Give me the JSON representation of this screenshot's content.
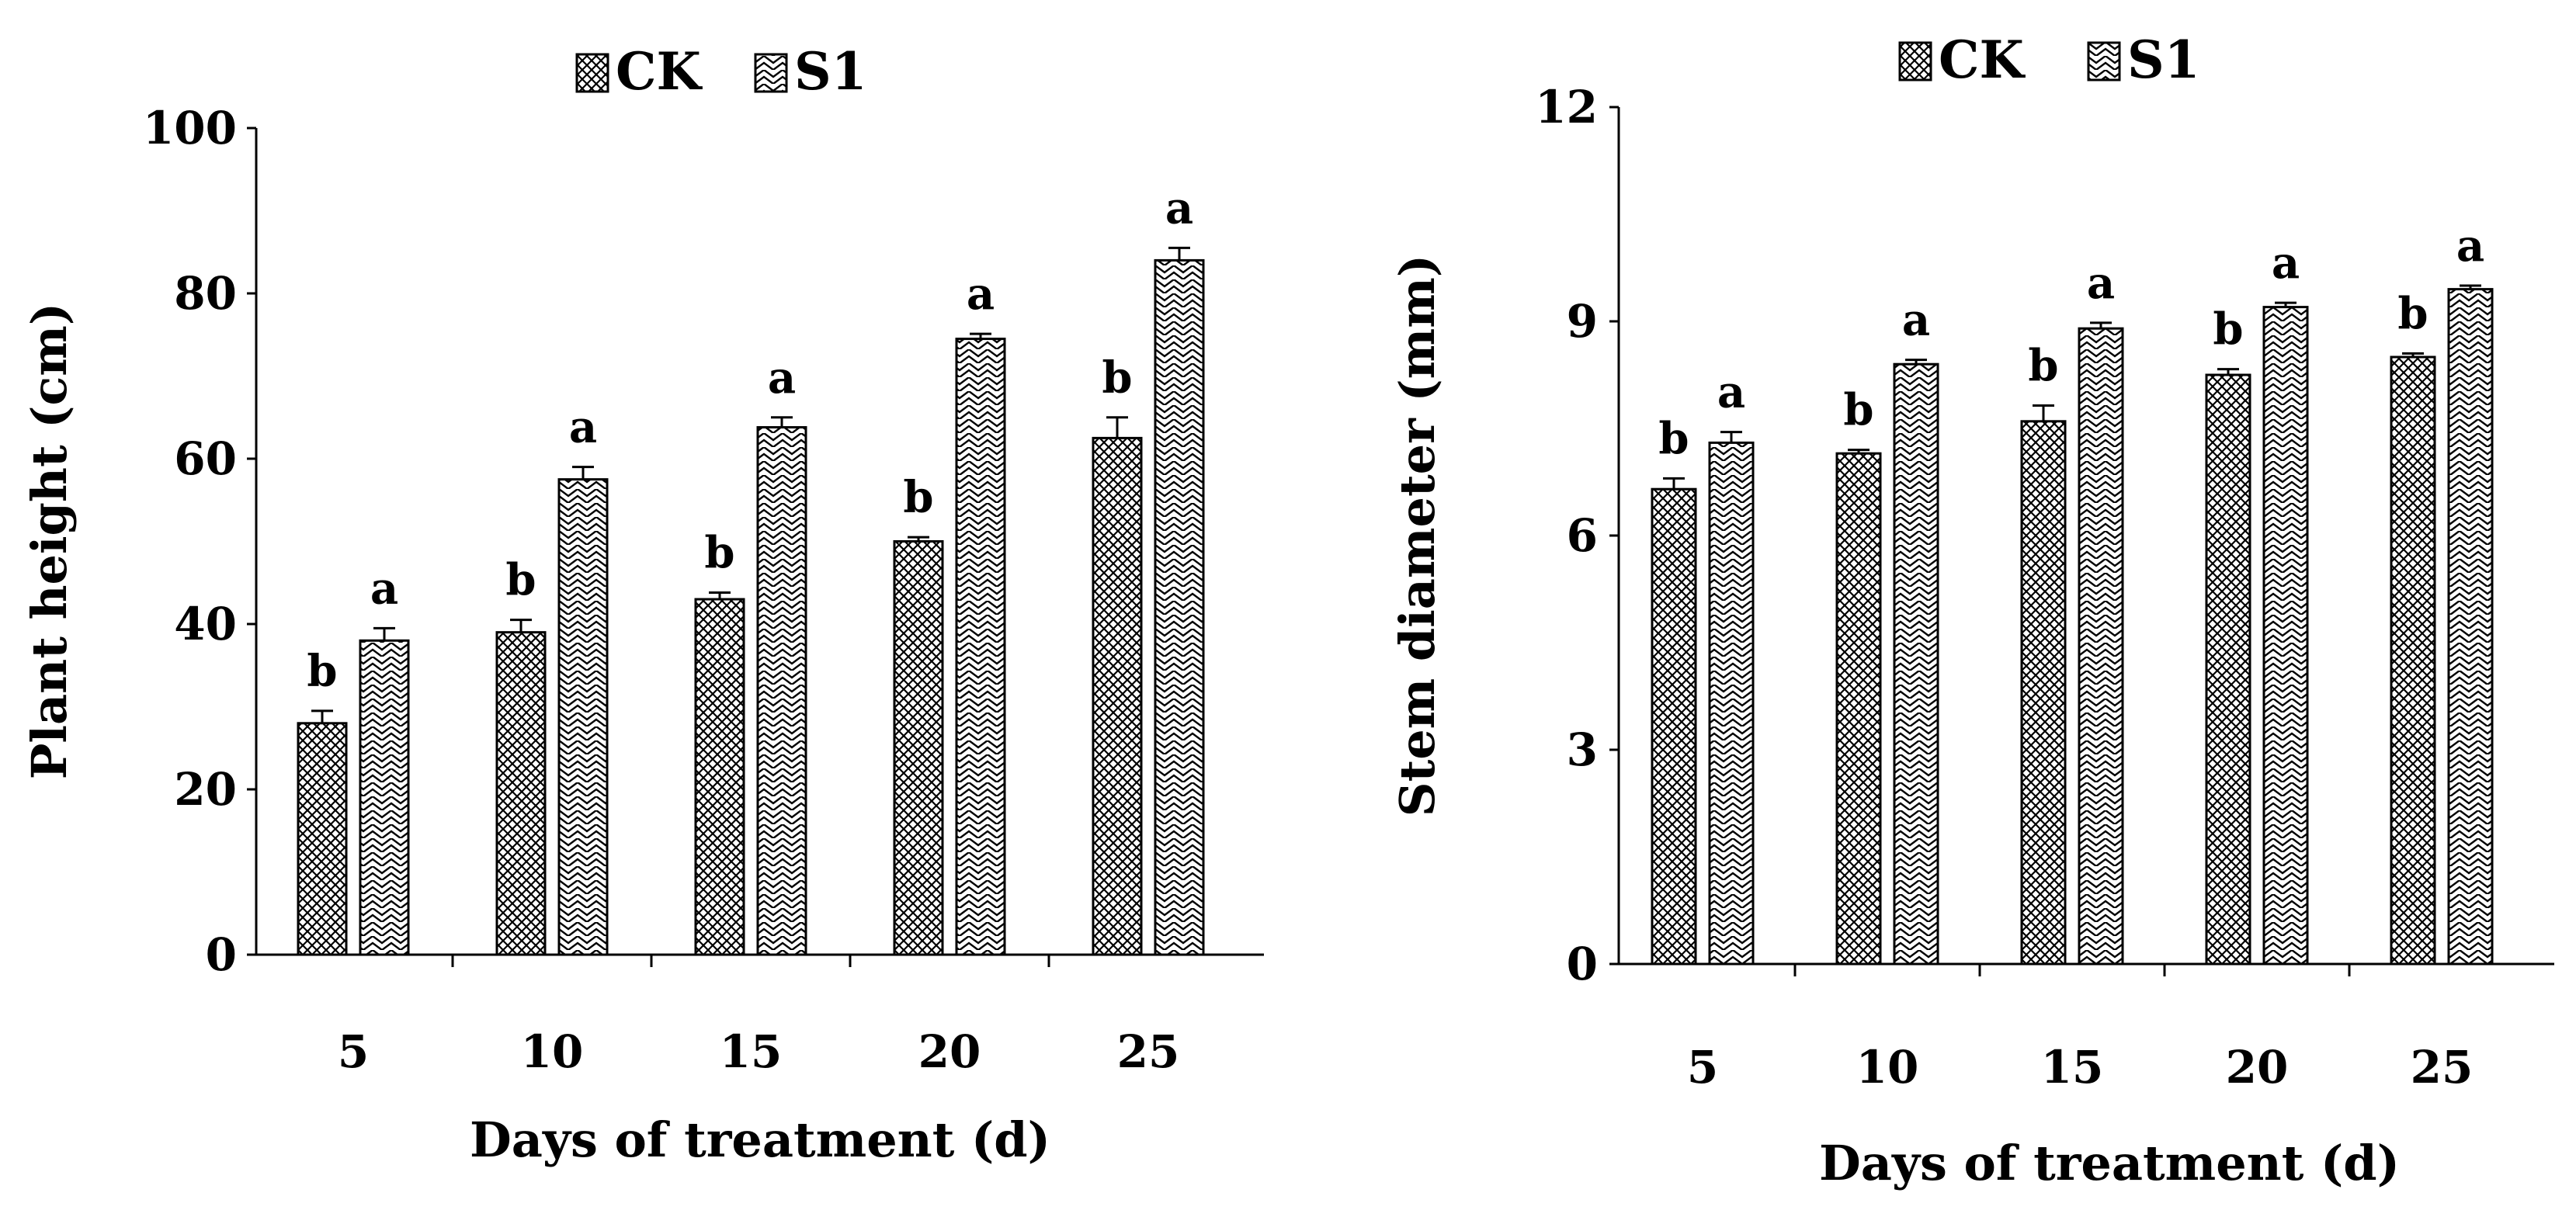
{
  "chart_data": [
    {
      "type": "bar",
      "name": "plant-height",
      "categories": [
        "5",
        "10",
        "15",
        "20",
        "25"
      ],
      "series": [
        {
          "name": "CK",
          "values": [
            28,
            39,
            43,
            50,
            62.5
          ],
          "errors": [
            1.5,
            1.5,
            0.8,
            0.5,
            2.5
          ],
          "letters": [
            "b",
            "b",
            "b",
            "b",
            "b"
          ]
        },
        {
          "name": "S1",
          "values": [
            38,
            57.5,
            63.8,
            74.5,
            84
          ],
          "errors": [
            1.5,
            1.5,
            1.2,
            0.6,
            1.5
          ],
          "letters": [
            "a",
            "a",
            "a",
            "a",
            "a"
          ]
        }
      ],
      "title": "",
      "xlabel": "Days of treatment (d)",
      "ylabel": "Plant height (cm)",
      "ylim": [
        0,
        100
      ],
      "yticks": [
        0,
        20,
        40,
        60,
        80,
        100
      ],
      "grid": false,
      "legend": "top-center"
    },
    {
      "type": "bar",
      "name": "stem-diameter",
      "categories": [
        "5",
        "10",
        "15",
        "20",
        "25"
      ],
      "series": [
        {
          "name": "CK",
          "values": [
            6.65,
            7.15,
            7.6,
            8.25,
            8.5
          ],
          "errors": [
            0.15,
            0.05,
            0.22,
            0.08,
            0.05
          ],
          "letters": [
            "b",
            "b",
            "b",
            "b",
            "b"
          ]
        },
        {
          "name": "S1",
          "values": [
            7.3,
            8.4,
            8.9,
            9.2,
            9.45
          ],
          "errors": [
            0.15,
            0.06,
            0.08,
            0.06,
            0.05
          ],
          "letters": [
            "a",
            "a",
            "a",
            "a",
            "a"
          ]
        }
      ],
      "title": "",
      "xlabel": "Days of treatment (d)",
      "ylabel": "Stem diameter (mm)",
      "ylim": [
        0,
        12
      ],
      "yticks": [
        0,
        3,
        6,
        9,
        12
      ],
      "grid": false,
      "legend": "top-center"
    }
  ]
}
